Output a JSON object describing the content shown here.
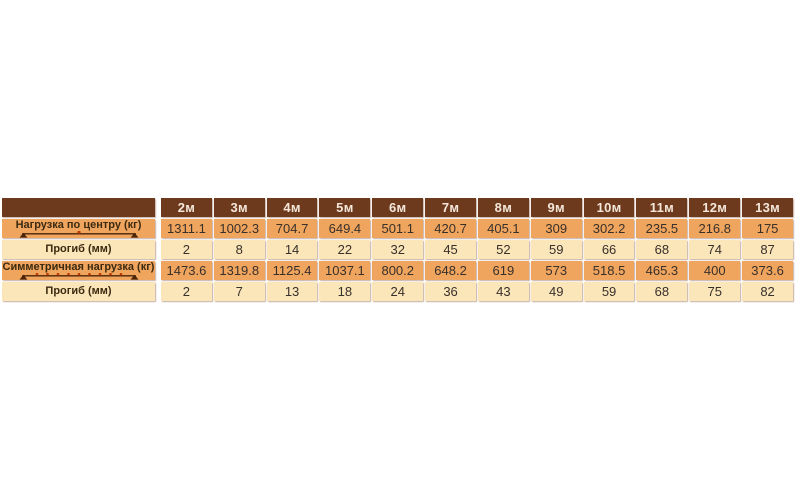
{
  "page": {
    "background": "#ffffff"
  },
  "table": {
    "columns": [
      "2м",
      "3м",
      "4м",
      "5м",
      "6м",
      "7м",
      "8м",
      "9м",
      "10м",
      "11м",
      "12м",
      "13м"
    ],
    "rows": [
      {
        "label": "Нагрузка по центру (кг)",
        "icon": "center-load-diagram-icon",
        "style": "orange",
        "values": [
          "1311.1",
          "1002.3",
          "704.7",
          "649.4",
          "501.1",
          "420.7",
          "405.1",
          "309",
          "302.2",
          "235.5",
          "216.8",
          "175"
        ]
      },
      {
        "label": "Прогиб (мм)",
        "icon": null,
        "style": "cream",
        "values": [
          "2",
          "8",
          "14",
          "22",
          "32",
          "45",
          "52",
          "59",
          "66",
          "68",
          "74",
          "87"
        ]
      },
      {
        "label": "Симметричная нагрузка (кг)",
        "icon": "distributed-load-diagram-icon",
        "style": "orange",
        "values": [
          "1473.6",
          "1319.8",
          "1125.4",
          "1037.1",
          "800.2",
          "648.2",
          "619",
          "573",
          "518.5",
          "465.3",
          "400",
          "373.6"
        ]
      },
      {
        "label": "Прогиб (мм)",
        "icon": null,
        "style": "cream",
        "values": [
          "2",
          "7",
          "13",
          "18",
          "24",
          "36",
          "43",
          "49",
          "59",
          "68",
          "75",
          "82"
        ]
      }
    ],
    "colors": {
      "header_bg": "#6e3a1d",
      "header_text": "#f4e7da",
      "row_orange": "#f0a55f",
      "row_cream": "#fbe6ba",
      "cell_text": "#38302a",
      "label_text": "#3c2a10",
      "diagram_line": "#4a2508",
      "diagram_dot": "#bd3a05"
    }
  },
  "chart_data": {
    "type": "table",
    "title": "",
    "columns": [
      "2м",
      "3м",
      "4м",
      "5м",
      "6м",
      "7м",
      "8м",
      "9м",
      "10м",
      "11м",
      "12м",
      "13м"
    ],
    "rows": [
      {
        "name": "Нагрузка по центру (кг)",
        "values": [
          1311.1,
          1002.3,
          704.7,
          649.4,
          501.1,
          420.7,
          405.1,
          309,
          302.2,
          235.5,
          216.8,
          175
        ]
      },
      {
        "name": "Прогиб (мм)",
        "values": [
          2,
          8,
          14,
          22,
          32,
          45,
          52,
          59,
          66,
          68,
          74,
          87
        ]
      },
      {
        "name": "Симметричная нагрузка (кг)",
        "values": [
          1473.6,
          1319.8,
          1125.4,
          1037.1,
          800.2,
          648.2,
          619,
          573,
          518.5,
          465.3,
          400,
          373.6
        ]
      },
      {
        "name": "Прогиб (мм)",
        "values": [
          2,
          7,
          13,
          18,
          24,
          36,
          43,
          49,
          59,
          68,
          75,
          82
        ]
      }
    ]
  }
}
